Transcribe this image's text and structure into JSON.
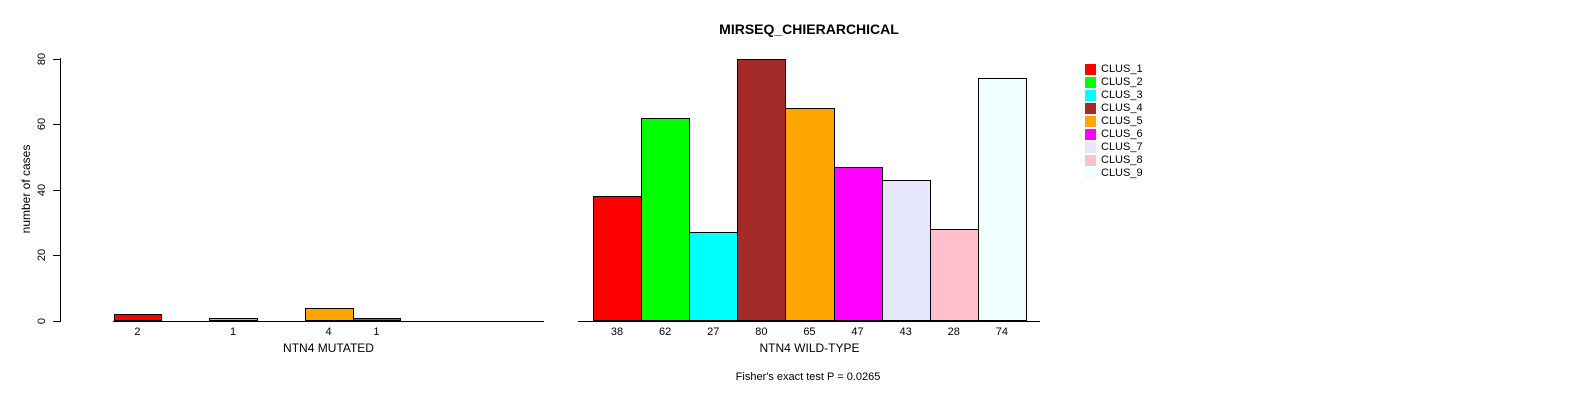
{
  "title": "MIRSEQ_CHIERARCHICAL",
  "ylabel": "number of cases",
  "footer": "Fisher's exact test P = 0.0265",
  "legend": {
    "position": "right",
    "items": [
      {
        "label": "CLUS_1",
        "color": "#FF0000"
      },
      {
        "label": "CLUS_2",
        "color": "#00FF00"
      },
      {
        "label": "CLUS_3",
        "color": "#00FFFF"
      },
      {
        "label": "CLUS_4",
        "color": "#A52A2A"
      },
      {
        "label": "CLUS_5",
        "color": "#FFA500"
      },
      {
        "label": "CLUS_6",
        "color": "#FF00FF"
      },
      {
        "label": "CLUS_7",
        "color": "#E6E6FA"
      },
      {
        "label": "CLUS_8",
        "color": "#FFC0CB"
      },
      {
        "label": "CLUS_9",
        "color": "#F0FFFF"
      }
    ]
  },
  "chart_data": [
    {
      "type": "bar",
      "panel": "mutated",
      "title": "MIRSEQ_CHIERARCHICAL",
      "xlabel": "NTN4 MUTATED",
      "ylabel": "number of cases",
      "ylim": [
        0,
        80
      ],
      "yticks": [
        0,
        20,
        40,
        60,
        80
      ],
      "grid": false,
      "categories": [
        "CLUS_1",
        "CLUS_2",
        "CLUS_3",
        "CLUS_4",
        "CLUS_5",
        "CLUS_6",
        "CLUS_7",
        "CLUS_8",
        "CLUS_9"
      ],
      "values": [
        2,
        0,
        1,
        0,
        4,
        1,
        0,
        0,
        0
      ],
      "bar_labels": [
        "2",
        "",
        "1",
        "",
        "4",
        "1",
        "",
        "",
        ""
      ]
    },
    {
      "type": "bar",
      "panel": "wild-type",
      "xlabel": "NTN4 WILD-TYPE",
      "ylim": [
        0,
        80
      ],
      "yticks": [
        0,
        20,
        40,
        60,
        80
      ],
      "grid": false,
      "legend_position": "right",
      "categories": [
        "CLUS_1",
        "CLUS_2",
        "CLUS_3",
        "CLUS_4",
        "CLUS_5",
        "CLUS_6",
        "CLUS_7",
        "CLUS_8",
        "CLUS_9"
      ],
      "values": [
        38,
        62,
        27,
        80,
        65,
        47,
        43,
        28,
        74
      ],
      "bar_labels": [
        "38",
        "62",
        "27",
        "80",
        "65",
        "47",
        "43",
        "28",
        "74"
      ]
    }
  ],
  "annotation": "Fisher's exact test P = 0.0265"
}
